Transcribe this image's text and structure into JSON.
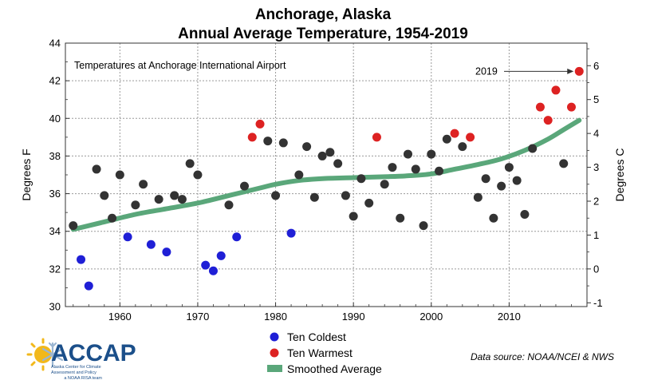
{
  "chart_data": {
    "type": "scatter",
    "title": "Anchorage, Alaska",
    "subtitle": "Annual Average Temperature, 1954-2019",
    "xlabel": "",
    "ylabel": "Degrees F",
    "ylabel_right": "Degrees C",
    "xlim": [
      1953,
      2020
    ],
    "ylim": [
      30,
      44
    ],
    "ylim_right_c": [
      -1.111,
      6.667
    ],
    "x_ticks": [
      1960,
      1970,
      1980,
      1990,
      2000,
      2010
    ],
    "y_ticks": [
      30,
      32,
      34,
      36,
      38,
      40,
      42,
      44
    ],
    "y_ticks_right": [
      -1,
      0,
      1,
      2,
      3,
      4,
      5,
      6
    ],
    "grid": true,
    "annotation": "Temperatures at Anchorage International Airport",
    "callout": {
      "label": "2019",
      "x": 2019,
      "y": 42.5
    },
    "series": [
      {
        "name": "",
        "color": "#333333",
        "points": [
          [
            1954,
            34.3
          ],
          [
            1957,
            37.3
          ],
          [
            1958,
            35.9
          ],
          [
            1959,
            34.7
          ],
          [
            1960,
            37.0
          ],
          [
            1962,
            35.4
          ],
          [
            1963,
            36.5
          ],
          [
            1965,
            35.7
          ],
          [
            1967,
            35.9
          ],
          [
            1968,
            35.7
          ],
          [
            1969,
            37.6
          ],
          [
            1970,
            37.0
          ],
          [
            1974,
            35.4
          ],
          [
            1976,
            36.4
          ],
          [
            1979,
            38.8
          ],
          [
            1980,
            35.9
          ],
          [
            1981,
            38.7
          ],
          [
            1983,
            37.0
          ],
          [
            1984,
            38.5
          ],
          [
            1985,
            35.8
          ],
          [
            1986,
            38.0
          ],
          [
            1987,
            38.2
          ],
          [
            1988,
            37.6
          ],
          [
            1989,
            35.9
          ],
          [
            1990,
            34.8
          ],
          [
            1991,
            36.8
          ],
          [
            1992,
            35.5
          ],
          [
            1994,
            36.5
          ],
          [
            1995,
            37.4
          ],
          [
            1996,
            34.7
          ],
          [
            1997,
            38.1
          ],
          [
            1998,
            37.3
          ],
          [
            1999,
            34.3
          ],
          [
            2000,
            38.1
          ],
          [
            2001,
            37.2
          ],
          [
            2002,
            38.9
          ],
          [
            2004,
            38.5
          ],
          [
            2006,
            35.8
          ],
          [
            2007,
            36.8
          ],
          [
            2008,
            34.7
          ],
          [
            2009,
            36.4
          ],
          [
            2010,
            37.4
          ],
          [
            2011,
            36.7
          ],
          [
            2012,
            34.9
          ],
          [
            2013,
            38.4
          ],
          [
            2017,
            37.6
          ]
        ]
      },
      {
        "name": "Ten Coldest",
        "color": "#1f1fd6",
        "points": [
          [
            1955,
            32.5
          ],
          [
            1956,
            31.1
          ],
          [
            1961,
            33.7
          ],
          [
            1964,
            33.3
          ],
          [
            1966,
            32.9
          ],
          [
            1971,
            32.2
          ],
          [
            1972,
            31.9
          ],
          [
            1973,
            32.7
          ],
          [
            1975,
            33.7
          ],
          [
            1982,
            33.9
          ]
        ]
      },
      {
        "name": "Ten Warmest",
        "color": "#dd2222",
        "points": [
          [
            1977,
            39.0
          ],
          [
            1978,
            39.7
          ],
          [
            1993,
            39.0
          ],
          [
            2003,
            39.2
          ],
          [
            2005,
            39.0
          ],
          [
            2014,
            40.6
          ],
          [
            2015,
            39.9
          ],
          [
            2016,
            41.5
          ],
          [
            2018,
            40.6
          ],
          [
            2019,
            42.5
          ]
        ]
      },
      {
        "name": "Smoothed Average",
        "color": "#5aa77a",
        "type": "line",
        "points": [
          [
            1954,
            34.1
          ],
          [
            1958,
            34.5
          ],
          [
            1962,
            34.9
          ],
          [
            1966,
            35.2
          ],
          [
            1970,
            35.5
          ],
          [
            1974,
            35.9
          ],
          [
            1978,
            36.3
          ],
          [
            1980,
            36.5
          ],
          [
            1983,
            36.7
          ],
          [
            1986,
            36.8
          ],
          [
            1990,
            36.85
          ],
          [
            1994,
            36.9
          ],
          [
            1997,
            36.95
          ],
          [
            2000,
            37.05
          ],
          [
            2003,
            37.3
          ],
          [
            2006,
            37.55
          ],
          [
            2009,
            37.85
          ],
          [
            2012,
            38.3
          ],
          [
            2015,
            38.9
          ],
          [
            2017,
            39.4
          ],
          [
            2019,
            39.9
          ]
        ]
      }
    ],
    "legend_placement": "bottom-center",
    "source": "Data source: NOAA/NCEI & NWS"
  },
  "logo": {
    "name": "ACCAP",
    "subtitle_lines": [
      "Alaska Center for Climate",
      "Assessment and Policy"
    ],
    "tagline": "a NOAA RISA team",
    "colors": {
      "text": "#1b4f8a",
      "sun": "#f2b81b",
      "snowflake": "#9bb6d2"
    }
  }
}
